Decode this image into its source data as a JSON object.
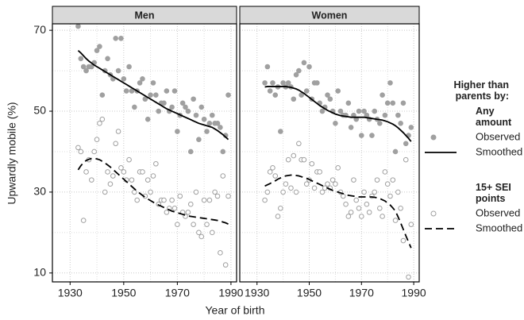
{
  "chart_data": {
    "type": "scatter",
    "facets": [
      "Men",
      "Women"
    ],
    "xlabel": "Year of birth",
    "ylabel": "Upwardly mobile (%)",
    "xlim": [
      1923.4,
      1992.1
    ],
    "ylim": [
      7.8,
      71.6
    ],
    "xticks": [
      1930,
      1950,
      1970,
      1990
    ],
    "xminor": [
      1940,
      1960,
      1980
    ],
    "yticks": [
      10,
      30,
      50,
      70
    ],
    "yminor": [
      20,
      40,
      60
    ],
    "grid": true,
    "legend": {
      "title": "Higher than parents by:",
      "groups": [
        "Any amount",
        "15+ SEI points"
      ]
    },
    "x": [
      1933,
      1934,
      1935,
      1936,
      1937,
      1938,
      1939,
      1940,
      1941,
      1942,
      1943,
      1944,
      1945,
      1946,
      1947,
      1948,
      1949,
      1950,
      1951,
      1952,
      1953,
      1954,
      1955,
      1956,
      1957,
      1958,
      1959,
      1960,
      1961,
      1962,
      1963,
      1964,
      1965,
      1966,
      1967,
      1968,
      1969,
      1970,
      1971,
      1972,
      1973,
      1974,
      1975,
      1976,
      1977,
      1978,
      1979,
      1980,
      1981,
      1982,
      1983,
      1984,
      1985,
      1986,
      1987,
      1988,
      1989
    ],
    "series": [
      {
        "name": "Observed",
        "group": 0,
        "kind": "points",
        "filled": true,
        "color": "#a0a0a0",
        "values": [
          [
            71,
            63,
            61,
            60,
            61,
            61,
            62,
            65,
            66,
            54,
            60,
            63,
            59,
            58,
            68,
            60,
            68,
            58,
            55,
            61,
            55,
            51,
            55,
            57,
            58,
            53,
            48,
            54,
            57,
            54,
            50,
            52,
            52,
            55,
            50,
            51,
            55,
            45,
            49,
            52,
            51,
            50,
            40,
            53,
            49,
            43,
            51,
            48,
            45,
            47,
            49,
            47,
            47,
            46,
            40,
            44,
            54
          ],
          [
            57,
            61,
            55,
            57,
            54,
            56,
            45,
            57,
            56,
            57,
            56,
            53,
            59,
            60,
            54,
            62,
            55,
            61,
            53,
            57,
            57,
            52,
            50,
            51,
            54,
            53,
            50,
            47,
            55,
            50,
            49,
            49,
            52,
            46,
            49,
            48,
            50,
            44,
            50,
            49,
            48,
            44,
            50,
            48,
            47,
            54,
            49,
            52,
            57,
            52,
            40,
            49,
            47,
            52,
            42,
            44,
            46
          ]
        ]
      },
      {
        "name": "Smoothed",
        "group": 0,
        "kind": "line",
        "dashed": false,
        "color": "#000000",
        "values": [
          [
            65,
            64.4,
            63.7,
            63,
            62.4,
            61.9,
            61.4,
            61,
            60.6,
            60.2,
            59.8,
            59.4,
            59,
            58.6,
            58.2,
            57.8,
            57.4,
            57,
            56.6,
            56.2,
            55.8,
            55.4,
            55,
            54.6,
            54.2,
            53.8,
            53.4,
            53,
            52.6,
            52.2,
            51.8,
            51.4,
            51,
            50.6,
            50.3,
            50,
            49.7,
            49.4,
            49.1,
            48.8,
            48.5,
            48.2,
            47.9,
            47.6,
            47.3,
            47,
            46.8,
            46.6,
            46.4,
            46.2,
            46,
            45.6,
            45.2,
            44.7,
            44.2,
            43.6,
            43
          ],
          [
            56,
            56.1,
            56.1,
            56.1,
            56.1,
            56.1,
            56.1,
            56.1,
            56.1,
            56,
            55.9,
            55.7,
            55.5,
            55.2,
            54.8,
            54.4,
            53.9,
            53.4,
            52.9,
            52.4,
            51.9,
            51.4,
            51,
            50.6,
            50.2,
            49.9,
            49.6,
            49.3,
            49.1,
            48.9,
            48.8,
            48.7,
            48.6,
            48.5,
            48.5,
            48.5,
            48.5,
            48.5,
            48.5,
            48.4,
            48.3,
            48.2,
            48.1,
            48,
            47.9,
            47.8,
            47.6,
            47.4,
            47.1,
            46.8,
            46.4,
            45.9,
            45.3,
            44.7,
            44,
            43.3,
            42.5
          ]
        ]
      },
      {
        "name": "Observed",
        "group": 1,
        "kind": "points",
        "filled": false,
        "color": "#a0a0a0",
        "values": [
          [
            41,
            40,
            23,
            35,
            38,
            33,
            40,
            43,
            47,
            48,
            30,
            35,
            32,
            34,
            42,
            45,
            36,
            35,
            33,
            38,
            33,
            30,
            28,
            35,
            35,
            29,
            33,
            30,
            34,
            37,
            27,
            28,
            28,
            25,
            26,
            28,
            26,
            22,
            29,
            25,
            24,
            25,
            27,
            22,
            30,
            20,
            19,
            28,
            22,
            28,
            20,
            30,
            29,
            15,
            34,
            12,
            29
          ],
          [
            28,
            30,
            35,
            36,
            34,
            24,
            26,
            30,
            32,
            38,
            31,
            39,
            30,
            42,
            38,
            38,
            32,
            33,
            37,
            31,
            35,
            35,
            30,
            31,
            32,
            31,
            33,
            32,
            36,
            30,
            29,
            27,
            24,
            25,
            33,
            28,
            26,
            24,
            30,
            27,
            25,
            29,
            30,
            33,
            26,
            24,
            35,
            32,
            29,
            33,
            23,
            30,
            26,
            18,
            38,
            9,
            22
          ]
        ]
      },
      {
        "name": "Smoothed",
        "group": 1,
        "kind": "line",
        "dashed": true,
        "color": "#000000",
        "values": [
          [
            35.5,
            36.5,
            37.3,
            37.8,
            38.1,
            38.3,
            38.3,
            38.2,
            38,
            37.6,
            37.2,
            36.7,
            36.2,
            35.6,
            35,
            34.4,
            33.8,
            33.2,
            32.6,
            32,
            31.4,
            30.8,
            30.2,
            29.7,
            29.2,
            28.7,
            28.3,
            27.9,
            27.5,
            27.1,
            26.8,
            26.5,
            26.2,
            25.9,
            25.6,
            25.3,
            25.1,
            24.9,
            24.7,
            24.5,
            24.3,
            24.1,
            24,
            23.9,
            23.8,
            23.7,
            23.6,
            23.5,
            23.4,
            23.3,
            23.2,
            23.1,
            23,
            22.8,
            22.6,
            22.4,
            22.1
          ],
          [
            31.5,
            31.8,
            32.1,
            32.5,
            32.8,
            33.2,
            33.5,
            33.8,
            34,
            34.1,
            34.2,
            34.2,
            34.1,
            34,
            33.8,
            33.6,
            33.4,
            33.1,
            32.8,
            32.5,
            32.2,
            31.9,
            31.6,
            31.3,
            31,
            30.7,
            30.4,
            30.2,
            30,
            29.8,
            29.6,
            29.4,
            29.2,
            29.1,
            29,
            28.9,
            28.8,
            28.8,
            28.8,
            28.8,
            28.8,
            28.8,
            28.7,
            28.6,
            28.4,
            28.1,
            27.8,
            27.3,
            26.8,
            26.1,
            25.3,
            23.9,
            22.4,
            20.8,
            19.2,
            17.7,
            16.2
          ]
        ]
      }
    ]
  }
}
